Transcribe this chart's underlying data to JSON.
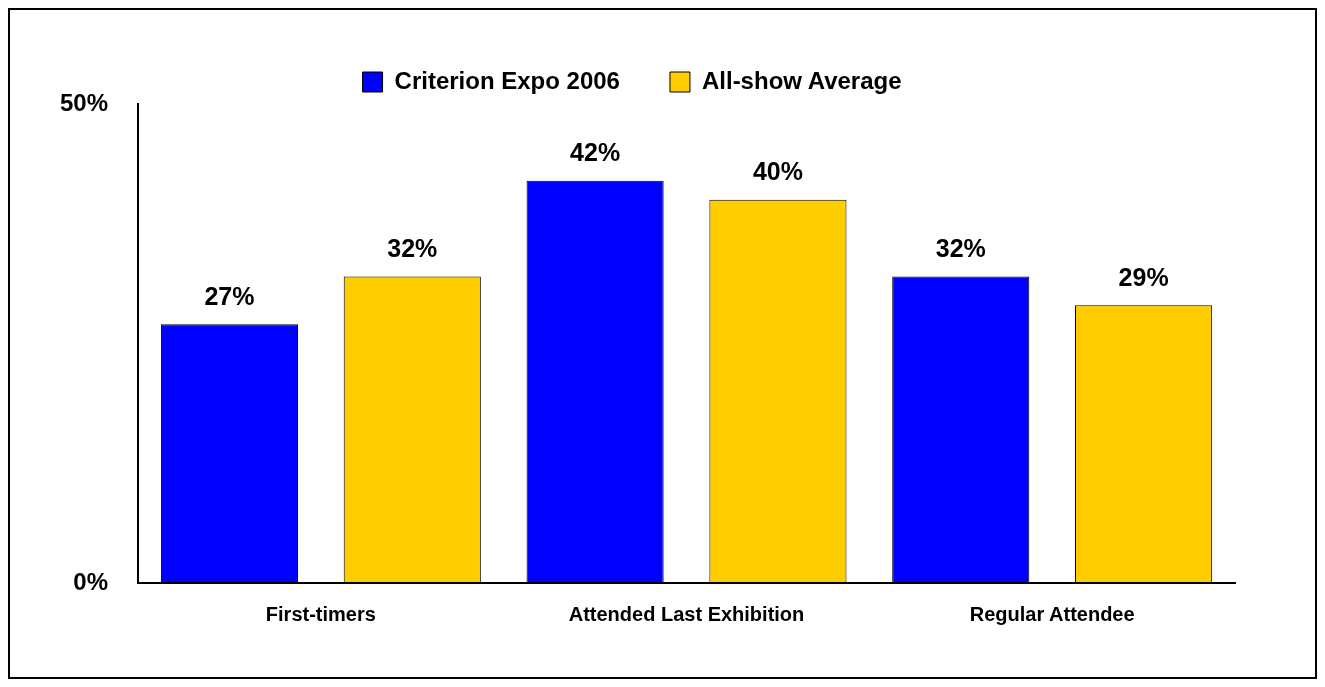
{
  "chart_data": {
    "type": "bar",
    "categories": [
      "First-timers",
      "Attended Last Exhibition",
      "Regular Attendee"
    ],
    "series": [
      {
        "name": "Criterion Expo 2006",
        "color": "#0000ff",
        "values": [
          27,
          42,
          32
        ],
        "value_labels": [
          "27%",
          "42%",
          "32%"
        ]
      },
      {
        "name": "All-show Average",
        "color": "#ffcc00",
        "values": [
          32,
          40,
          29
        ],
        "value_labels": [
          "32%",
          "40%",
          "29%"
        ]
      }
    ],
    "ylim": [
      0,
      50
    ],
    "yticks": [
      {
        "value": 0,
        "label": "0%"
      },
      {
        "value": 50,
        "label": "50%"
      }
    ],
    "grid": false,
    "legend": "top"
  }
}
